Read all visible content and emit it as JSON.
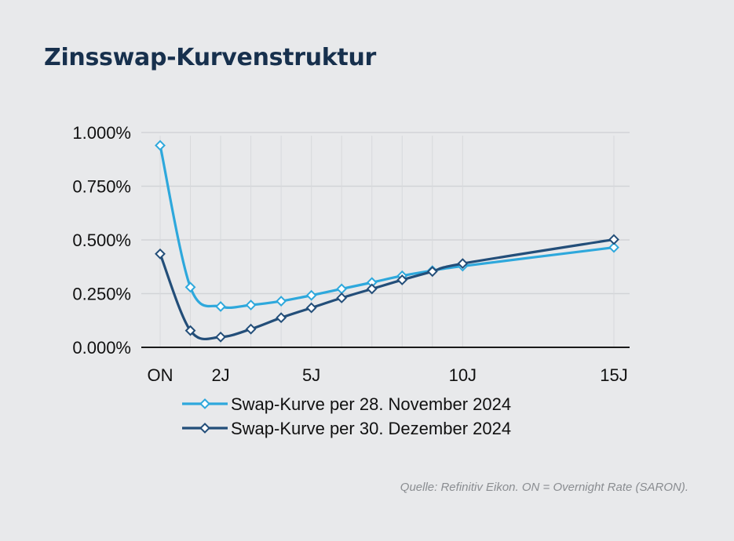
{
  "title": "Zinsswap-Kurvenstruktur",
  "source": "Quelle: Refinitiv Eikon. ON = Overnight Rate (SARON).",
  "chart_data": {
    "type": "line",
    "title": "Zinsswap-Kurvenstruktur",
    "xlabel": "",
    "ylabel": "",
    "y_ticks": [
      "0.000%",
      "0.250%",
      "0.500%",
      "0.750%",
      "1.000%"
    ],
    "y_tick_values": [
      0,
      0.25,
      0.5,
      0.75,
      1.0
    ],
    "ylim": [
      0,
      1.0
    ],
    "x_tick_labels": [
      "ON",
      "2J",
      "5J",
      "10J",
      "15J"
    ],
    "x_tick_values": [
      0,
      2,
      5,
      10,
      15
    ],
    "xlim": [
      0,
      15
    ],
    "x": [
      0,
      1,
      2,
      3,
      4,
      5,
      6,
      7,
      8,
      9,
      10,
      15
    ],
    "grid": true,
    "legend_position": "bottom",
    "series": [
      {
        "name": "Swap-Kurve per 28. November 2024",
        "color": "#2ea8dc",
        "marker": "diamond",
        "values": [
          0.94,
          0.28,
          0.19,
          0.197,
          0.215,
          0.242,
          0.272,
          0.302,
          0.333,
          0.357,
          0.378,
          0.465
        ]
      },
      {
        "name": "Swap-Kurve per 30. Dezember 2024",
        "color": "#234e79",
        "marker": "diamond",
        "values": [
          0.435,
          0.078,
          0.048,
          0.085,
          0.138,
          0.184,
          0.23,
          0.272,
          0.314,
          0.353,
          0.39,
          0.502
        ]
      }
    ]
  }
}
